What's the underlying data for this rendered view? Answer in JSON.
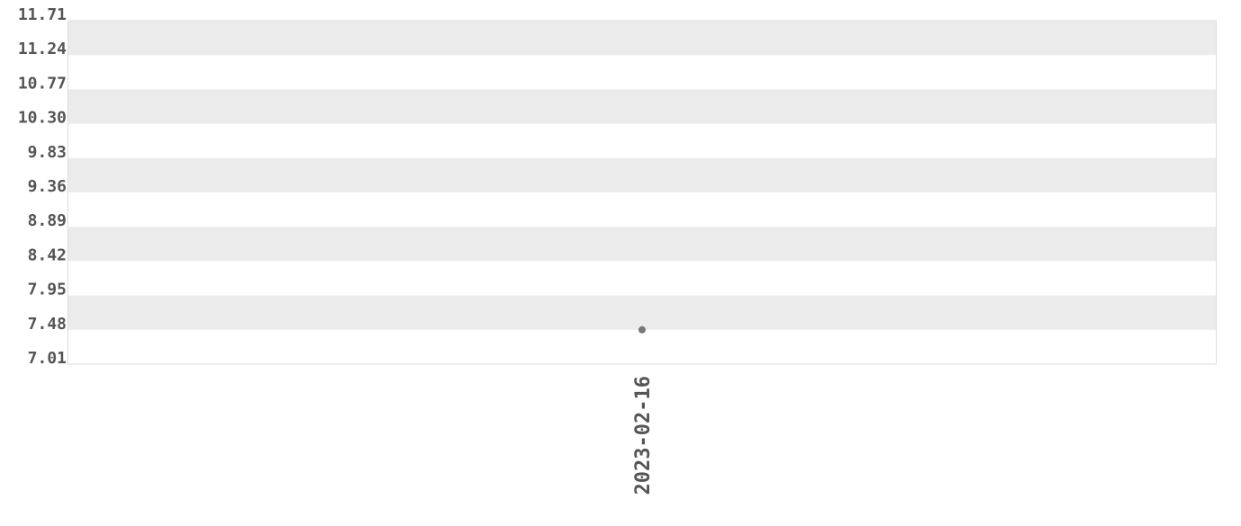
{
  "chart_data": {
    "type": "scatter",
    "title": "",
    "xlabel": "",
    "ylabel": "",
    "x_categories": [
      "2023-02-16"
    ],
    "points": [
      {
        "x": "2023-02-16",
        "y": 7.48
      }
    ],
    "ylim": [
      7.01,
      11.71
    ],
    "y_ticks": [
      "11.71",
      "11.24",
      "10.77",
      "10.30",
      "9.83",
      "9.36",
      "8.89",
      "8.42",
      "7.95",
      "7.48",
      "7.01"
    ],
    "grid": "alternating horizontal bands",
    "colors": {
      "band": "#ebebeb",
      "point": "#777777",
      "text": "#555555",
      "border": "#dddddd"
    }
  }
}
